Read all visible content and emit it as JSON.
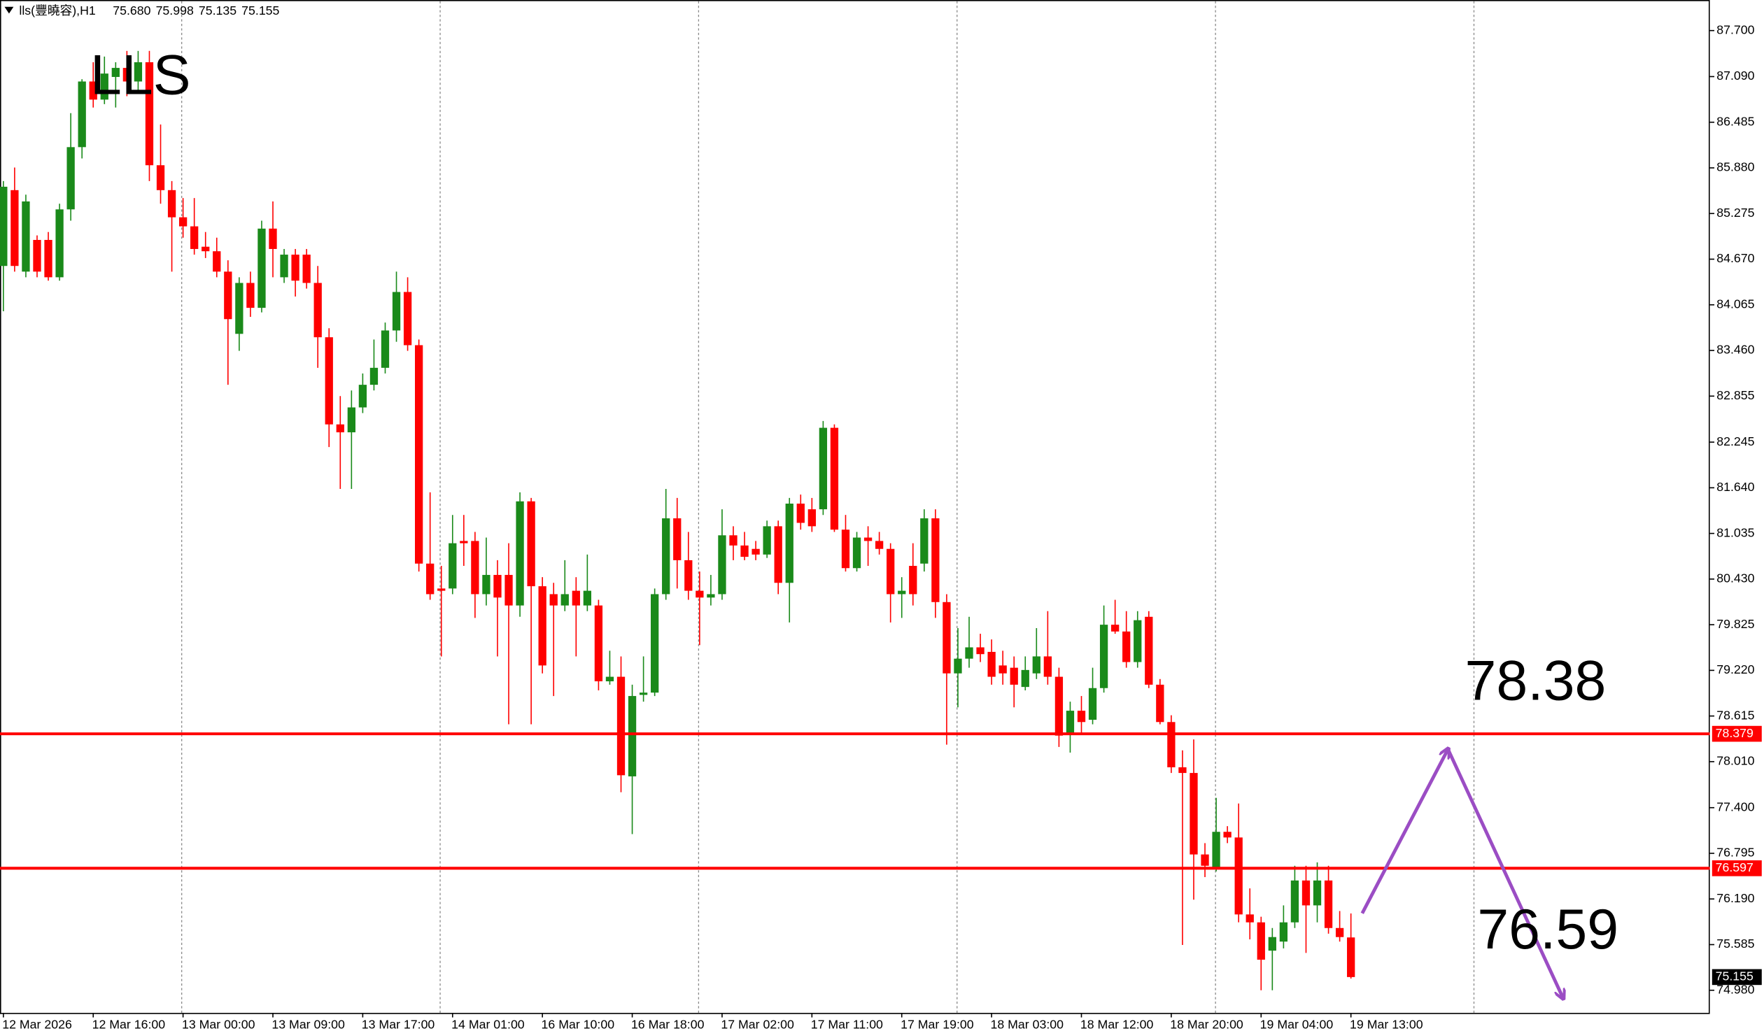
{
  "chart_data": {
    "type": "candlestick",
    "header": "lls(豐曉容),H1",
    "header_values": [
      "75.680",
      "75.998",
      "75.135",
      "75.155"
    ],
    "annotations": [
      "LLS",
      "78.38",
      "76.59"
    ],
    "categories": [
      "12 Mar 2026",
      null,
      null,
      null,
      null,
      null,
      null,
      null,
      "12 Mar 16:00",
      null,
      null,
      null,
      null,
      null,
      null,
      null,
      "13 Mar 00:00",
      null,
      null,
      null,
      null,
      null,
      null,
      null,
      "13 Mar 09:00",
      null,
      null,
      null,
      null,
      null,
      null,
      null,
      "13 Mar 17:00",
      null,
      null,
      null,
      null,
      null,
      null,
      null,
      "14 Mar 01:00",
      null,
      null,
      null,
      null,
      null,
      null,
      null,
      "16 Mar 10:00",
      null,
      null,
      null,
      null,
      null,
      null,
      null,
      "16 Mar 18:00",
      null,
      null,
      null,
      null,
      null,
      null,
      null,
      "17 Mar 02:00",
      null,
      null,
      null,
      null,
      null,
      null,
      null,
      "17 Mar 11:00",
      null,
      null,
      null,
      null,
      null,
      null,
      null,
      "17 Mar 19:00",
      null,
      null,
      null,
      null,
      null,
      null,
      null,
      "18 Mar 03:00",
      null,
      null,
      null,
      null,
      null,
      null,
      null,
      "18 Mar 12:00",
      null,
      null,
      null,
      null,
      null,
      null,
      null,
      "18 Mar 20:00",
      null,
      null,
      null,
      null,
      null,
      null,
      null,
      "19 Mar 04:00",
      null,
      null,
      null,
      null,
      null,
      null,
      null,
      "19 Mar 13:00"
    ],
    "open": [
      84.58,
      85.585,
      84.505,
      84.925,
      84.925,
      84.43,
      85.33,
      86.155,
      87.025,
      86.785,
      87.085,
      87.205,
      87.025,
      87.28,
      85.915,
      85.585,
      85.225,
      85.105,
      84.835,
      84.775,
      84.505,
      83.68,
      84.355,
      84.025,
      85.075,
      84.43,
      84.73,
      84.73,
      84.355,
      83.635,
      82.48,
      82.375,
      82.705,
      83.005,
      83.23,
      83.725,
      84.235,
      83.53,
      80.635,
      80.305,
      80.305,
      80.935,
      80.935,
      80.23,
      80.485,
      80.485,
      80.08,
      81.46,
      80.335,
      80.23,
      80.08,
      80.275,
      80.08,
      80.08,
      79.075,
      79.135,
      77.815,
      78.895,
      78.925,
      80.23,
      81.235,
      80.68,
      80.275,
      80.185,
      80.23,
      81.01,
      80.875,
      80.83,
      80.755,
      81.13,
      80.38,
      81.43,
      81.355,
      81.355,
      82.435,
      81.085,
      80.575,
      80.98,
      80.935,
      80.83,
      80.23,
      80.605,
      80.635,
      81.235,
      80.125,
      79.18,
      79.375,
      79.525,
      79.465,
      79.285,
      79.255,
      79.0,
      79.18,
      79.405,
      79.135,
      78.385,
      78.685,
      78.565,
      78.985,
      79.825,
      79.735,
      79.33,
      79.93,
      79.03,
      78.535,
      77.935,
      77.86,
      76.78,
      76.585,
      77.08,
      77.005,
      75.985,
      75.88,
      75.505,
      75.625,
      75.88,
      76.435,
      76.105,
      76.435,
      75.805,
      75.68
    ],
    "high": [
      85.705,
      85.885,
      85.525,
      84.985,
      85.03,
      85.405,
      86.605,
      87.055,
      87.28,
      87.355,
      87.28,
      87.43,
      87.43,
      87.43,
      86.455,
      85.705,
      85.48,
      85.48,
      85.03,
      84.955,
      84.655,
      84.43,
      84.505,
      85.18,
      85.435,
      84.805,
      84.805,
      84.805,
      84.58,
      83.755,
      82.855,
      82.93,
      83.155,
      83.605,
      83.83,
      84.505,
      84.43,
      83.605,
      81.58,
      80.605,
      81.28,
      81.28,
      81.055,
      80.98,
      80.68,
      80.905,
      81.58,
      81.505,
      80.455,
      80.38,
      80.68,
      80.455,
      80.755,
      80.155,
      79.48,
      79.405,
      79.03,
      79.405,
      80.305,
      81.625,
      81.505,
      81.055,
      80.53,
      80.485,
      81.355,
      81.13,
      81.055,
      80.935,
      81.205,
      81.205,
      81.505,
      81.55,
      81.505,
      82.525,
      82.48,
      81.28,
      81.055,
      81.13,
      81.055,
      80.905,
      80.455,
      80.905,
      81.355,
      81.355,
      80.23,
      79.78,
      79.93,
      79.705,
      79.63,
      79.48,
      79.405,
      79.405,
      79.78,
      80.005,
      79.255,
      78.805,
      78.88,
      79.255,
      80.08,
      80.155,
      80.005,
      80.005,
      80.005,
      79.105,
      78.625,
      78.16,
      78.305,
      76.93,
      77.53,
      77.155,
      77.455,
      76.33,
      75.955,
      75.805,
      76.105,
      76.63,
      76.63,
      76.675,
      76.63,
      76.03,
      75.998
    ],
    "low": [
      83.98,
      84.505,
      84.43,
      84.43,
      84.385,
      84.385,
      85.18,
      86.005,
      86.68,
      86.725,
      86.68,
      86.83,
      86.905,
      85.705,
      85.405,
      84.505,
      84.955,
      84.73,
      84.685,
      84.43,
      83.005,
      83.455,
      83.905,
      83.965,
      84.43,
      84.355,
      84.175,
      84.28,
      83.23,
      82.18,
      81.625,
      81.625,
      82.63,
      82.93,
      83.155,
      83.575,
      83.455,
      80.53,
      80.155,
      79.405,
      80.23,
      80.605,
      79.915,
      80.08,
      79.405,
      78.505,
      79.93,
      78.505,
      79.18,
      78.88,
      80.005,
      79.405,
      80.005,
      78.955,
      79.03,
      77.605,
      77.05,
      78.805,
      78.88,
      80.155,
      80.305,
      80.155,
      79.555,
      80.08,
      80.155,
      80.68,
      80.68,
      80.68,
      80.71,
      80.23,
      79.855,
      81.085,
      81.055,
      81.28,
      81.055,
      80.53,
      80.53,
      80.605,
      80.755,
      79.855,
      79.915,
      80.08,
      80.53,
      79.915,
      78.235,
      78.73,
      79.255,
      79.33,
      79.03,
      79.03,
      78.73,
      78.955,
      79.105,
      79.03,
      78.205,
      78.13,
      78.385,
      78.505,
      78.925,
      79.705,
      79.255,
      79.255,
      78.985,
      78.505,
      77.86,
      75.58,
      76.18,
      76.48,
      76.555,
      76.93,
      75.88,
      75.655,
      74.98,
      74.98,
      75.535,
      75.805,
      75.475,
      75.88,
      75.73,
      75.625,
      75.135
    ],
    "close": [
      85.63,
      84.58,
      85.435,
      84.505,
      84.43,
      85.33,
      86.155,
      87.025,
      86.785,
      87.13,
      87.205,
      87.025,
      87.28,
      85.915,
      85.585,
      85.225,
      85.105,
      84.805,
      84.775,
      84.505,
      83.875,
      84.355,
      84.025,
      85.075,
      84.805,
      84.73,
      84.385,
      84.355,
      83.635,
      82.48,
      82.375,
      82.705,
      83.005,
      83.23,
      83.725,
      84.235,
      83.53,
      80.635,
      80.23,
      80.275,
      80.905,
      80.905,
      80.23,
      80.485,
      80.185,
      80.08,
      81.46,
      80.335,
      79.285,
      80.08,
      80.23,
      80.08,
      80.275,
      79.075,
      79.135,
      77.83,
      78.88,
      78.925,
      80.23,
      81.235,
      80.68,
      80.275,
      80.185,
      80.23,
      81.01,
      80.875,
      80.725,
      80.755,
      81.13,
      80.38,
      81.43,
      81.175,
      81.13,
      82.435,
      81.085,
      80.575,
      80.98,
      80.935,
      80.83,
      80.23,
      80.275,
      80.23,
      81.235,
      80.125,
      79.18,
      79.375,
      79.525,
      79.435,
      79.135,
      79.18,
      79.03,
      79.225,
      79.405,
      79.135,
      78.355,
      78.685,
      78.535,
      78.985,
      79.825,
      79.735,
      79.33,
      79.885,
      79.03,
      78.535,
      77.935,
      77.86,
      76.78,
      76.63,
      77.08,
      77.005,
      75.985,
      75.88,
      75.385,
      75.685,
      75.88,
      76.435,
      76.105,
      76.435,
      75.805,
      75.685,
      75.155
    ],
    "up_color": "#1a8a1a",
    "down_color": "#ff0000",
    "ylim": [
      74.68,
      88.075
    ],
    "yticks": [
      {
        "value": 87.7,
        "label": "87.700"
      },
      {
        "value": 87.09,
        "label": "87.090"
      },
      86.485,
      {
        "value": 85.88,
        "label": "85.880"
      },
      85.275,
      {
        "value": 84.67,
        "label": "84.670"
      },
      84.065,
      {
        "value": 83.46,
        "label": "83.460"
      },
      82.855,
      82.245,
      {
        "value": 81.64,
        "label": "81.640"
      },
      81.035,
      {
        "value": 80.43,
        "label": "80.430"
      },
      79.825,
      {
        "value": 79.22,
        "label": "79.220"
      },
      78.615,
      {
        "value": 78.01,
        "label": "78.010"
      },
      {
        "value": 77.4,
        "label": "77.400"
      },
      76.795,
      {
        "value": 76.19,
        "label": "76.190"
      },
      75.585,
      {
        "value": 74.98,
        "label": "74.980"
      }
    ],
    "levels": [
      78.379,
      76.597
    ],
    "level_color": "#ff0000"
  }
}
